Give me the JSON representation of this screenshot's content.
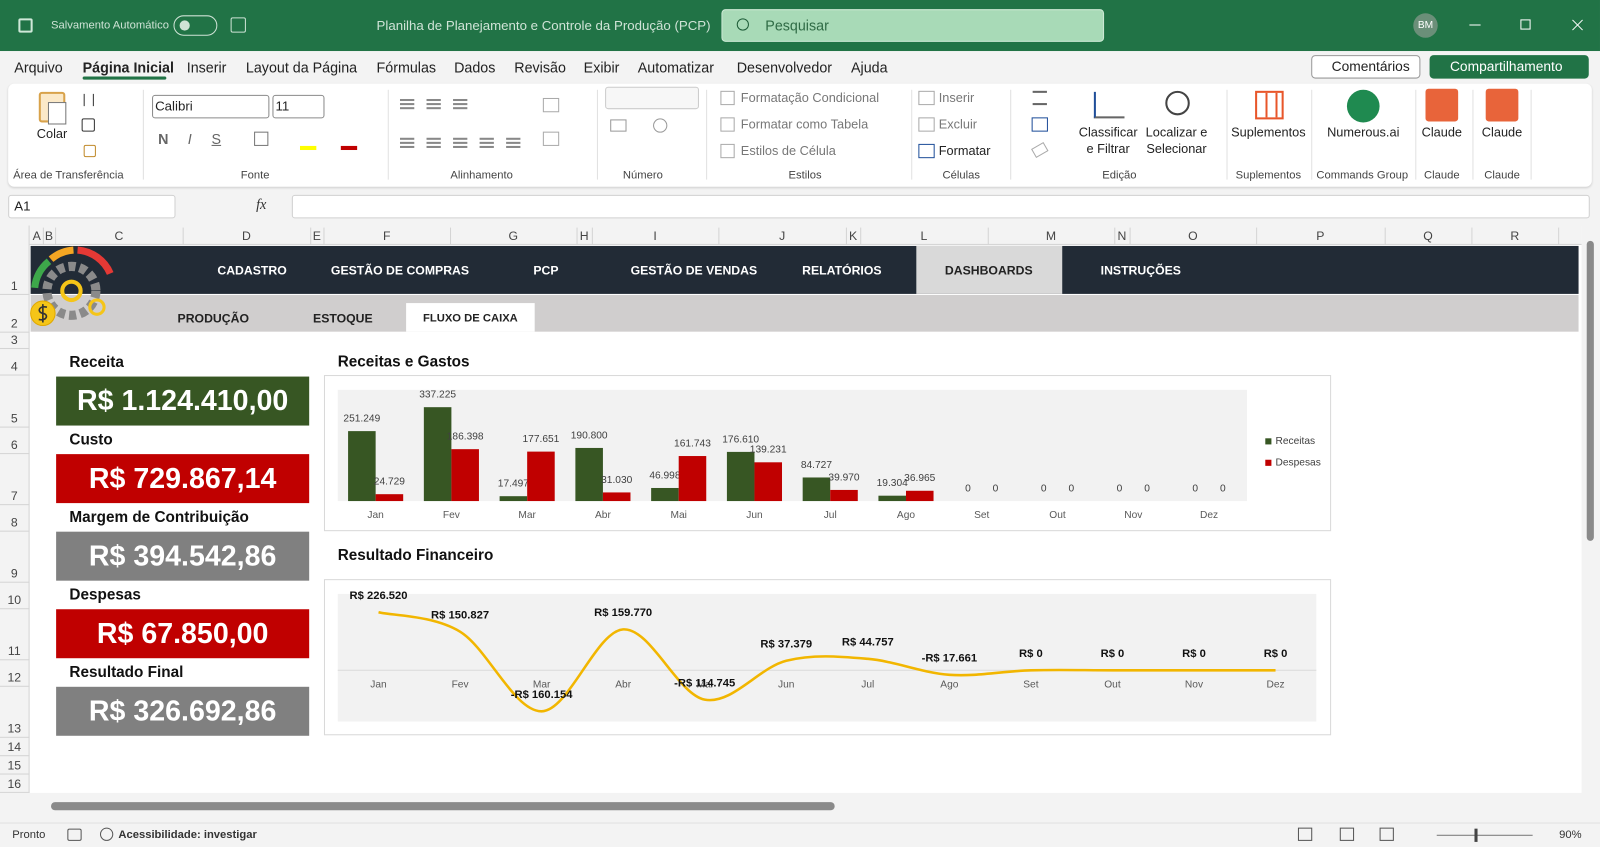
{
  "title_bar": {
    "autosave": "Salvamento Automático",
    "file_name": "Planilha de Planejamento e Controle da Produção (PCP)",
    "search": "Pesquisar",
    "user": "BM"
  },
  "menu_tabs": [
    "Arquivo",
    "Página Inicial",
    "Inserir",
    "Layout da Página",
    "Fórmulas",
    "Dados",
    "Revisão",
    "Exibir",
    "Automatizar",
    "Desenvolvedor",
    "Ajuda"
  ],
  "comments": "Comentários",
  "share": "Compartilhamento",
  "ribbon": {
    "clipboard": {
      "paste": "Colar",
      "label": "Área de Transferência"
    },
    "font": {
      "name": "Calibri",
      "size": "11",
      "bold": "N",
      "italic": "I",
      "underline": "S",
      "label": "Fonte"
    },
    "alignment": {
      "label": "Alinhamento"
    },
    "number": {
      "label": "Número"
    },
    "styles": {
      "buttons": [
        "Formatação Condicional",
        "Formatar como Tabela",
        "Estilos de Célula"
      ],
      "label": "Estilos"
    },
    "cells": {
      "buttons": [
        "Inserir",
        "Excluir",
        "Formatar"
      ],
      "label": "Células"
    },
    "editing": {
      "sort": [
        "Classificar",
        "e Filtrar"
      ],
      "find": [
        "Localizar e",
        "Selecionar"
      ],
      "label": "Edição"
    },
    "addins": {
      "button": "Suplementos",
      "label": "Suplementos"
    },
    "commands": {
      "button": "Numerous.ai",
      "label": "Commands Group"
    },
    "claude": [
      {
        "button": "Claude",
        "label": "Claude"
      },
      {
        "button": "Claude",
        "label": "Claude"
      }
    ]
  },
  "formula_bar": {
    "name_box": "A1",
    "fx": "fx"
  },
  "columns": [
    "A",
    "B",
    "C",
    "D",
    "E",
    "F",
    "G",
    "H",
    "I",
    "J",
    "K",
    "L",
    "M",
    "N",
    "O",
    "P",
    "Q",
    "R"
  ],
  "rows": [
    1,
    2,
    3,
    4,
    5,
    6,
    7,
    8,
    9,
    10,
    11,
    12,
    13,
    14,
    15,
    16
  ],
  "nav": [
    "CADASTRO",
    "GESTÃO DE COMPRAS",
    "PCP",
    "GESTÃO DE VENDAS",
    "RELATÓRIOS",
    "DASHBOARDS",
    "INSTRUÇÕES"
  ],
  "subnav": [
    "PRODUÇÃO",
    "ESTOQUE",
    "FLUXO DE CAIXA"
  ],
  "kpis": [
    {
      "label": "Receita",
      "value": "R$ 1.124.410,00",
      "color": "#375623"
    },
    {
      "label": "Custo",
      "value": "R$ 729.867,14",
      "color": "#c00000"
    },
    {
      "label": "Margem de Contribuição",
      "value": "R$ 394.542,86",
      "color": "#808080"
    },
    {
      "label": "Despesas",
      "value": "R$ 67.850,00",
      "color": "#c00000"
    },
    {
      "label": "Resultado Final",
      "value": "R$ 326.692,86",
      "color": "#808080"
    }
  ],
  "chart_data": [
    {
      "type": "bar",
      "title": "Receitas e Gastos",
      "categories": [
        "Jan",
        "Fev",
        "Mar",
        "Abr",
        "Mai",
        "Jun",
        "Jul",
        "Ago",
        "Set",
        "Out",
        "Nov",
        "Dez"
      ],
      "series": [
        {
          "name": "Receitas",
          "color": "#375623",
          "values": [
            251249,
            337225,
            17497,
            190800,
            46998,
            176610,
            84727,
            19304,
            0,
            0,
            0,
            0
          ],
          "value_labels": [
            "251.249",
            "337.225",
            "17.497",
            "190.800",
            "46.998",
            "176.610",
            "84.727",
            "19.304",
            "0",
            "0",
            "0",
            "0"
          ]
        },
        {
          "name": "Despesas",
          "color": "#c00000",
          "values": [
            24729,
            186398,
            177651,
            31030,
            161743,
            139231,
            39970,
            36965,
            0,
            0,
            0,
            0
          ],
          "value_labels": [
            "24.729",
            "186.398",
            "177.651",
            "31.030",
            "161.743",
            "139.231",
            "39.970",
            "36.965",
            "0",
            "0",
            "0",
            "0"
          ]
        }
      ],
      "legend": "right"
    },
    {
      "type": "line",
      "title": "Resultado Financeiro",
      "smooth": true,
      "categories": [
        "Jan",
        "Fev",
        "Mar",
        "Abr",
        "Mai",
        "Jun",
        "Jul",
        "Ago",
        "Set",
        "Out",
        "Nov",
        "Dez"
      ],
      "series": [
        {
          "color": "#f2b600",
          "values": [
            226520,
            150827,
            -160154,
            159770,
            -114745,
            37379,
            44757,
            -17661,
            0,
            0,
            0,
            0
          ],
          "value_labels": [
            "R$ 226.520",
            "R$ 150.827",
            "-R$ 160.154",
            "R$ 159.770",
            "-R$ 114.745",
            "R$ 37.379",
            "R$ 44.757",
            "-R$ 17.661",
            "R$ 0",
            "R$ 0",
            "R$ 0",
            "R$ 0"
          ]
        }
      ]
    }
  ],
  "status_bar": {
    "ready": "Pronto",
    "accessibility": "Acessibilidade: investigar",
    "zoom": "90%"
  }
}
